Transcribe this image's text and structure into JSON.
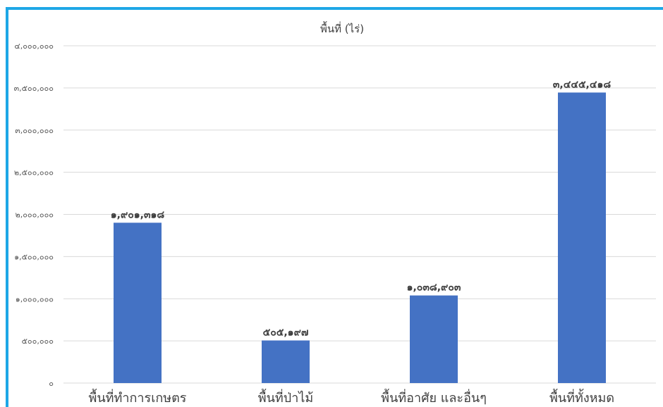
{
  "chart_data": {
    "type": "bar",
    "title": "พื้นที่ (ไร่)",
    "xlabel": "",
    "ylabel": "",
    "categories": [
      "พื้นที่ทำการเกษตร",
      "พื้นที่ป่าไม้",
      "พื้นที่อาศัย และอื่นๆ",
      "พื้นที่ทั้งหมด"
    ],
    "values": [
      1901318,
      505197,
      1038903,
      3445418
    ],
    "value_labels": [
      "๑,๙๐๑,๓๑๘",
      "๕๐๕,๑๙๗",
      "๑,๐๓๘,๙๐๓",
      "๓,๔๔๕,๔๑๘"
    ],
    "ylim": [
      0,
      4000000
    ],
    "y_ticks": [
      0,
      500000,
      1000000,
      1500000,
      2000000,
      2500000,
      3000000,
      3500000,
      4000000
    ],
    "y_tick_labels": [
      "๐",
      "๕๐๐,๐๐๐",
      "๑,๐๐๐,๐๐๐",
      "๑,๕๐๐,๐๐๐",
      "๒,๐๐๐,๐๐๐",
      "๒,๕๐๐,๐๐๐",
      "๓,๐๐๐,๐๐๐",
      "๓,๕๐๐,๐๐๐",
      "๔,๐๐๐,๐๐๐"
    ],
    "grid": true,
    "legend": "none",
    "bar_color": "#4472c4"
  }
}
